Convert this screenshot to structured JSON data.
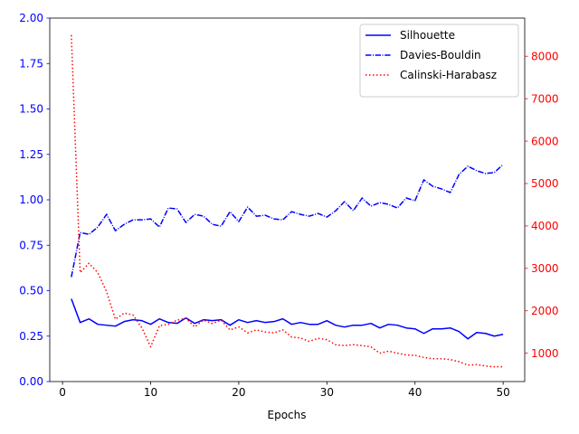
{
  "chart_data": {
    "type": "line",
    "title": "",
    "xlabel": "Epochs",
    "ylabel_left": "",
    "ylabel_right": "",
    "xlim": [
      -1.45,
      52.45
    ],
    "ylim_left": [
      0,
      2
    ],
    "ylim_right": [
      332,
      8900
    ],
    "x_ticks": [
      0,
      10,
      20,
      30,
      40,
      50
    ],
    "y_left_ticks": [
      "0.00",
      "0.25",
      "0.50",
      "0.75",
      "1.00",
      "1.25",
      "1.50",
      "1.75",
      "2.00"
    ],
    "y_right_ticks": [
      "1000",
      "2000",
      "3000",
      "4000",
      "5000",
      "6000",
      "7000",
      "8000"
    ],
    "grid": false,
    "legend_position": "top-right",
    "left_axis_color": "#0000ff",
    "right_axis_color": "#ff0000",
    "x": [
      1,
      2,
      3,
      4,
      5,
      6,
      7,
      8,
      9,
      10,
      11,
      12,
      13,
      14,
      15,
      16,
      17,
      18,
      19,
      20,
      21,
      22,
      23,
      24,
      25,
      26,
      27,
      28,
      29,
      30,
      31,
      32,
      33,
      34,
      35,
      36,
      37,
      38,
      39,
      40,
      41,
      42,
      43,
      44,
      45,
      46,
      47,
      48,
      49,
      50
    ],
    "series": [
      {
        "name": "Silhouette",
        "axis": "left",
        "color": "#0000ff",
        "style": "solid",
        "values": [
          0.455,
          0.325,
          0.345,
          0.315,
          0.31,
          0.305,
          0.33,
          0.34,
          0.335,
          0.315,
          0.345,
          0.325,
          0.32,
          0.35,
          0.32,
          0.34,
          0.335,
          0.34,
          0.31,
          0.34,
          0.325,
          0.335,
          0.325,
          0.33,
          0.345,
          0.315,
          0.325,
          0.315,
          0.315,
          0.335,
          0.31,
          0.3,
          0.31,
          0.31,
          0.32,
          0.295,
          0.315,
          0.31,
          0.295,
          0.29,
          0.265,
          0.29,
          0.29,
          0.295,
          0.275,
          0.235,
          0.27,
          0.265,
          0.25,
          0.26
        ]
      },
      {
        "name": "Davies-Bouldin",
        "axis": "left",
        "color": "#0000ff",
        "style": "dashdot",
        "values": [
          0.575,
          0.82,
          0.81,
          0.85,
          0.92,
          0.83,
          0.865,
          0.89,
          0.89,
          0.895,
          0.85,
          0.955,
          0.95,
          0.875,
          0.92,
          0.91,
          0.865,
          0.855,
          0.935,
          0.88,
          0.96,
          0.91,
          0.915,
          0.895,
          0.89,
          0.935,
          0.92,
          0.91,
          0.925,
          0.905,
          0.94,
          0.99,
          0.94,
          1.01,
          0.965,
          0.985,
          0.975,
          0.955,
          1.01,
          0.995,
          1.11,
          1.075,
          1.06,
          1.04,
          1.14,
          1.185,
          1.16,
          1.145,
          1.15,
          1.195
        ]
      },
      {
        "name": "Calinski-Harabasz",
        "axis": "right",
        "color": "#ff0000",
        "style": "dotted",
        "values": [
          8500,
          2900,
          3120,
          2900,
          2450,
          1800,
          1950,
          1900,
          1600,
          1150,
          1650,
          1680,
          1780,
          1820,
          1620,
          1780,
          1700,
          1780,
          1550,
          1620,
          1480,
          1550,
          1500,
          1480,
          1550,
          1380,
          1360,
          1280,
          1350,
          1320,
          1200,
          1180,
          1200,
          1180,
          1150,
          1000,
          1050,
          1000,
          960,
          950,
          900,
          870,
          870,
          850,
          800,
          720,
          730,
          700,
          680,
          680
        ]
      }
    ]
  }
}
